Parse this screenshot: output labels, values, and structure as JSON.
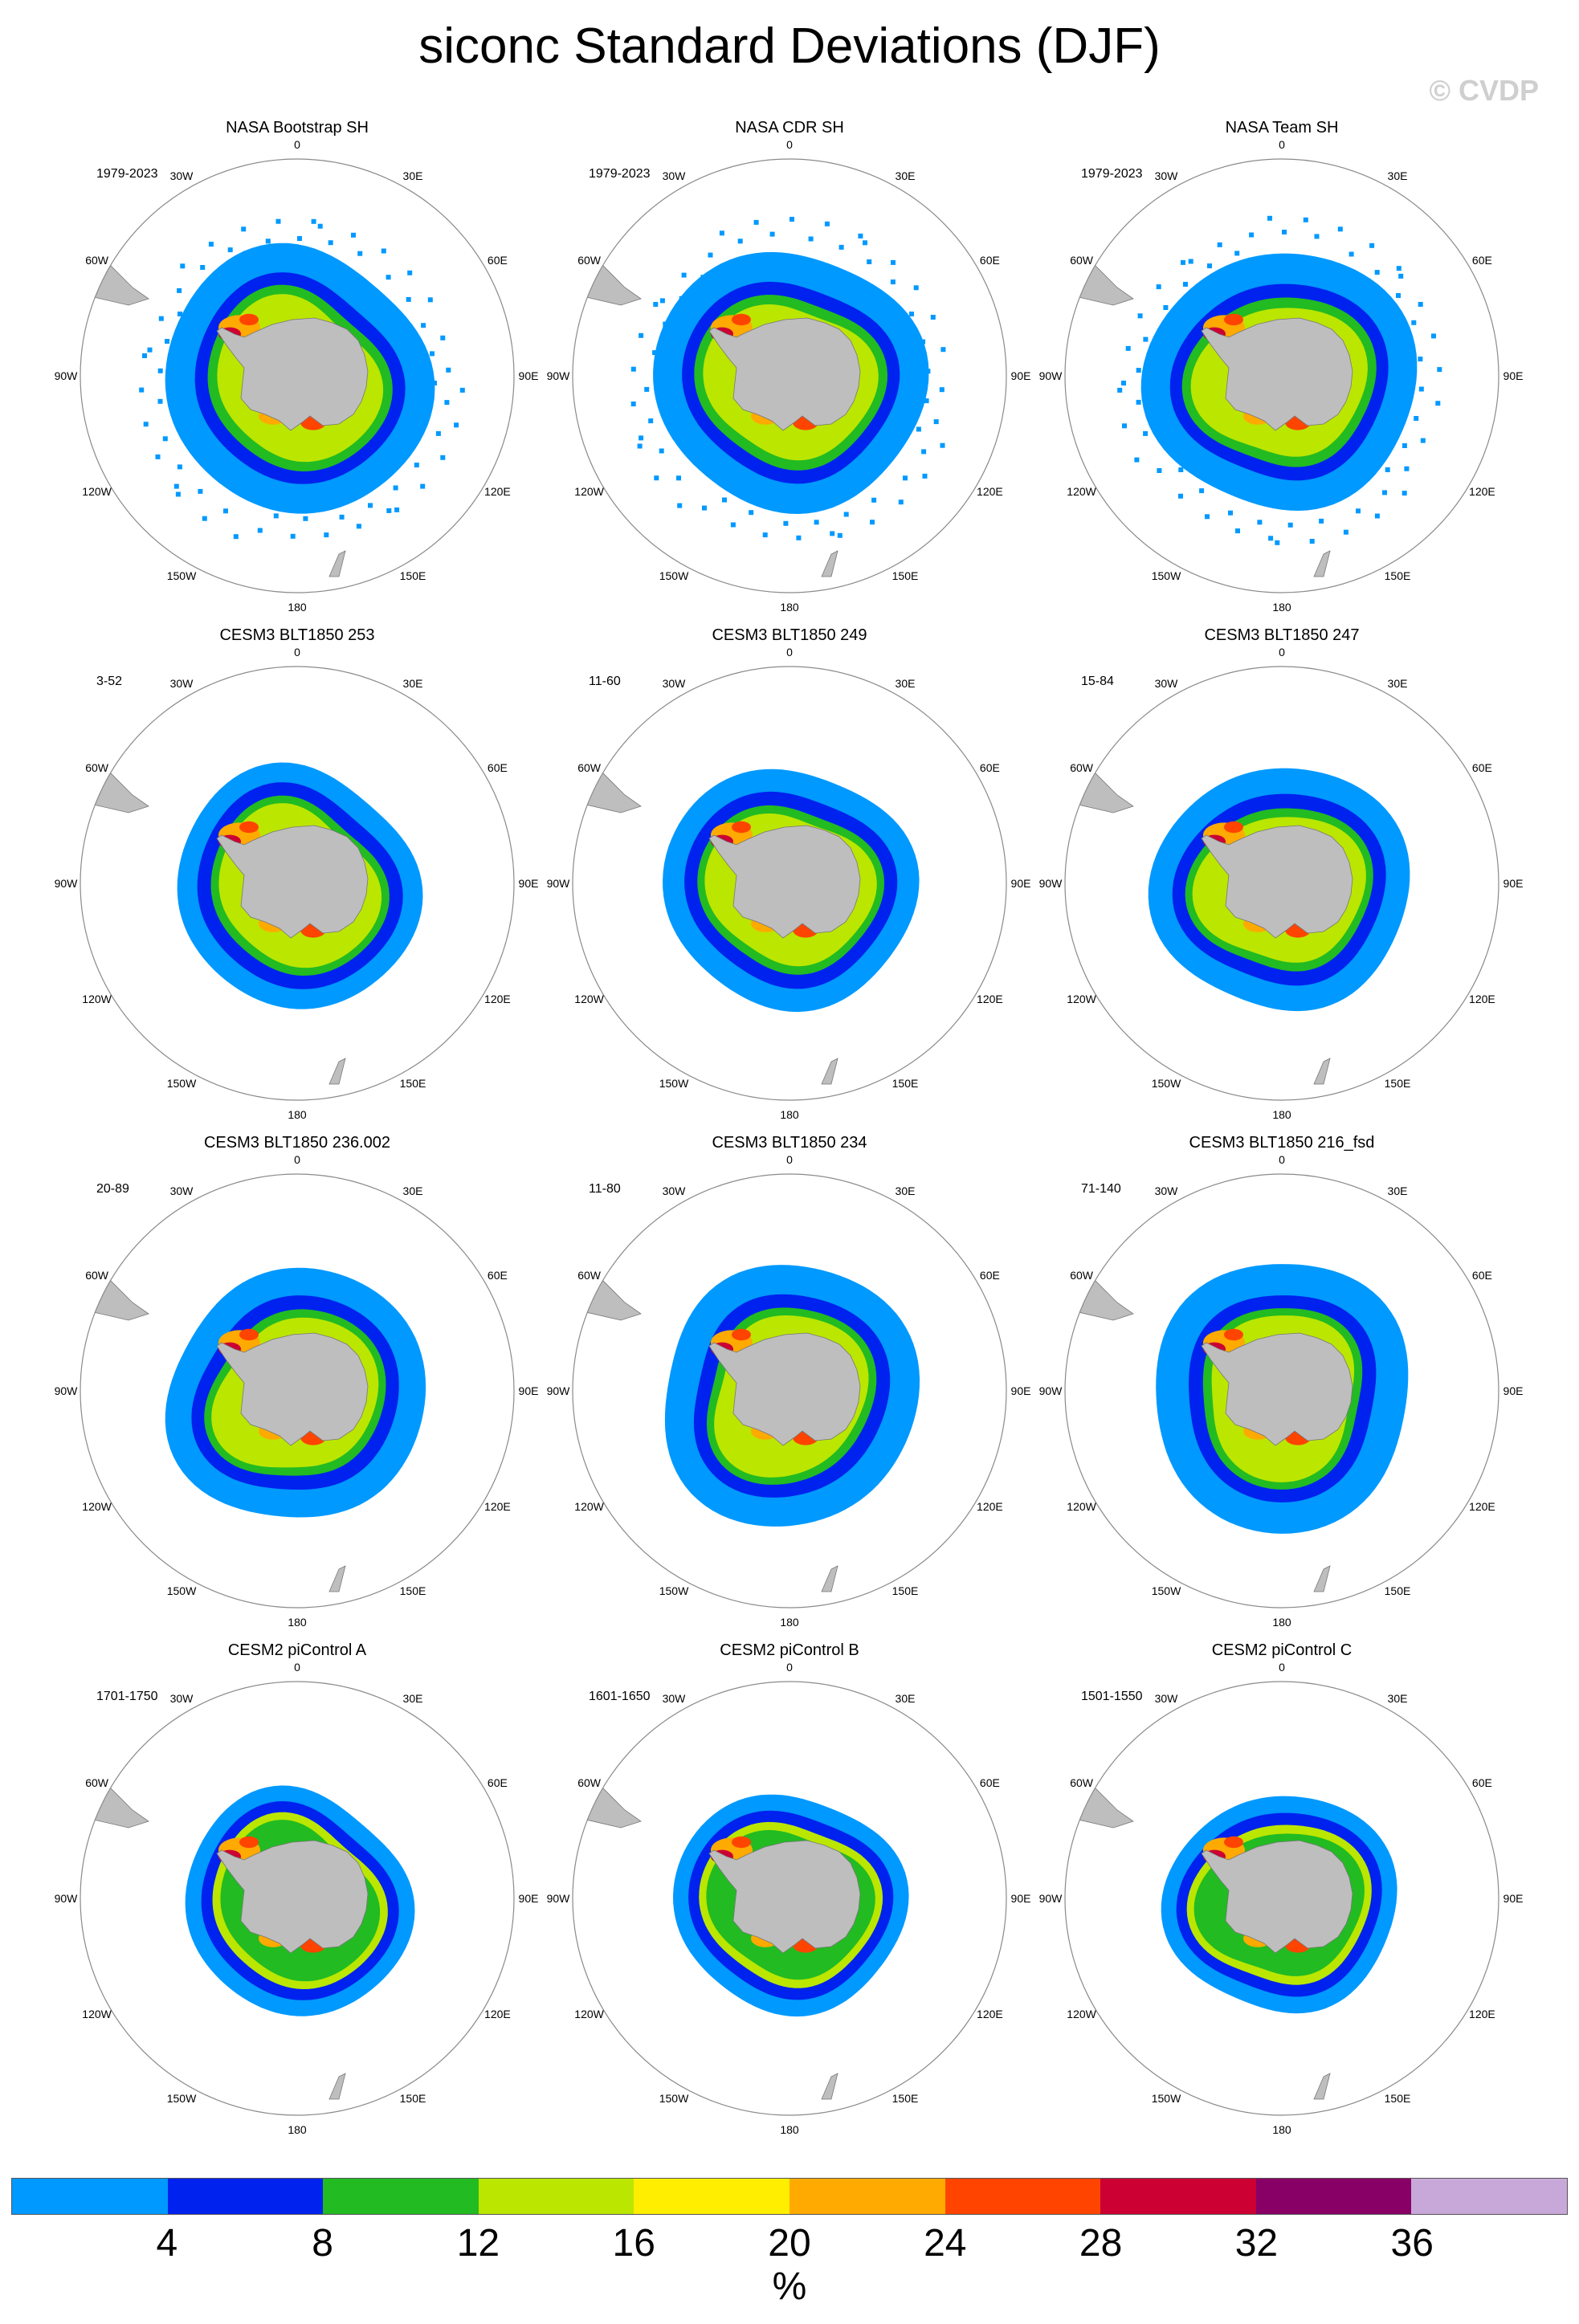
{
  "title": "siconc Standard Deviations (DJF)",
  "watermark": "© CVDP",
  "panels": [
    {
      "title": "NASA Bootstrap SH",
      "period": "1979-2023",
      "kind": "obs",
      "variant": 0
    },
    {
      "title": "NASA CDR SH",
      "period": "1979-2023",
      "kind": "obs",
      "variant": 1
    },
    {
      "title": "NASA Team SH",
      "period": "1979-2023",
      "kind": "obs",
      "variant": 2
    },
    {
      "title": "CESM3 BLT1850 253",
      "period": "3-52",
      "kind": "cesm3",
      "variant": 0
    },
    {
      "title": "CESM3 BLT1850 249",
      "period": "11-60",
      "kind": "cesm3",
      "variant": 1
    },
    {
      "title": "CESM3 BLT1850 247",
      "period": "15-84",
      "kind": "cesm3",
      "variant": 2
    },
    {
      "title": "CESM3 BLT1850 236.002",
      "period": "20-89",
      "kind": "cesm3",
      "variant": 3
    },
    {
      "title": "CESM3 BLT1850 234",
      "period": "11-80",
      "kind": "cesm3",
      "variant": 4
    },
    {
      "title": "CESM3 BLT1850 216_fsd",
      "period": "71-140",
      "kind": "cesm3",
      "variant": 5
    },
    {
      "title": "CESM2 piControl A",
      "period": "1701-1750",
      "kind": "cesm2",
      "variant": 0
    },
    {
      "title": "CESM2 piControl B",
      "period": "1601-1650",
      "kind": "cesm2",
      "variant": 1
    },
    {
      "title": "CESM2 piControl C",
      "period": "1501-1550",
      "kind": "cesm2",
      "variant": 2
    }
  ],
  "longitude_labels": [
    "0",
    "30E",
    "60E",
    "90E",
    "120E",
    "150E",
    "180",
    "150W",
    "120W",
    "90W",
    "60W",
    "30W"
  ],
  "colorbar": {
    "colors": [
      "#0099ff",
      "#0022ee",
      "#22bb22",
      "#bbe600",
      "#ffee00",
      "#ffaa00",
      "#ff4400",
      "#cc0033",
      "#880066",
      "#c8a8d8"
    ],
    "ticks": [
      "4",
      "8",
      "12",
      "16",
      "20",
      "24",
      "28",
      "32",
      "36"
    ],
    "unit": "%"
  },
  "land_color": "#bebebe"
}
